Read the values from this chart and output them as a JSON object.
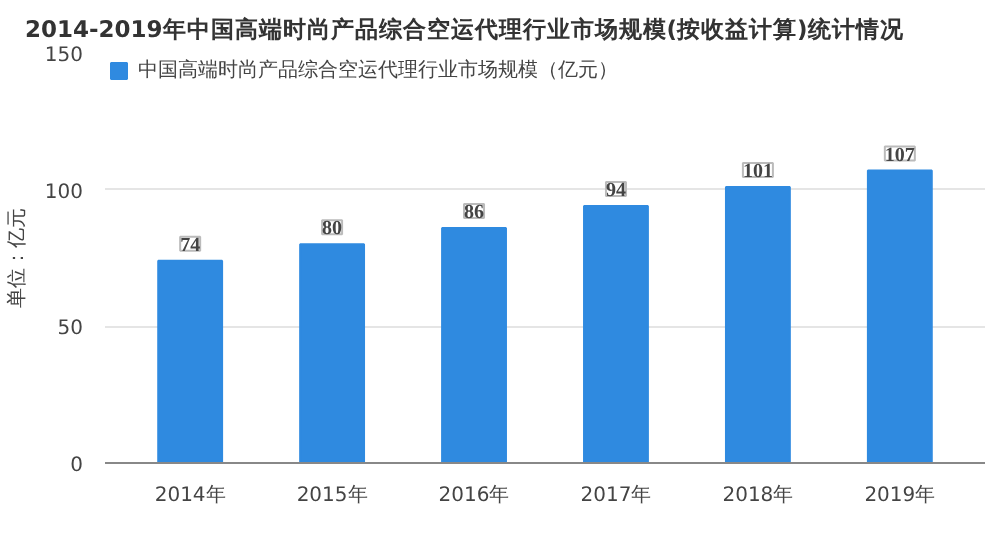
{
  "chart_data": {
    "type": "bar",
    "title": "2014-2019年中国高端时尚产品综合空运代理行业市场规模(按收益计算)统计情况",
    "ylabel": "单位：亿元",
    "categories": [
      "2014年",
      "2015年",
      "2016年",
      "2017年",
      "2018年",
      "2019年"
    ],
    "series": [
      {
        "name": "中国高端时尚产品综合空运代理行业市场规模（亿元）",
        "color": "#2f8ae0",
        "values": [
          74,
          80,
          86,
          94,
          101,
          107
        ]
      }
    ],
    "ylim": [
      0,
      150
    ],
    "yticks": [
      0,
      50,
      100,
      150
    ],
    "grid": "y",
    "legend": "top left",
    "data_labels": true
  }
}
